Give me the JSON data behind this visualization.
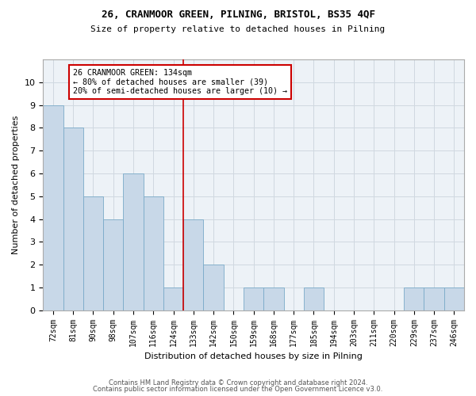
{
  "title1": "26, CRANMOOR GREEN, PILNING, BRISTOL, BS35 4QF",
  "title2": "Size of property relative to detached houses in Pilning",
  "xlabel": "Distribution of detached houses by size in Pilning",
  "ylabel": "Number of detached properties",
  "categories": [
    "72sqm",
    "81sqm",
    "90sqm",
    "98sqm",
    "107sqm",
    "116sqm",
    "124sqm",
    "133sqm",
    "142sqm",
    "150sqm",
    "159sqm",
    "168sqm",
    "177sqm",
    "185sqm",
    "194sqm",
    "203sqm",
    "211sqm",
    "220sqm",
    "229sqm",
    "237sqm",
    "246sqm"
  ],
  "values": [
    9,
    8,
    5,
    4,
    6,
    5,
    1,
    4,
    2,
    0,
    1,
    1,
    0,
    1,
    0,
    0,
    0,
    0,
    1,
    1,
    1
  ],
  "bar_color": "#c8d8e8",
  "bar_edgecolor": "#7aaac8",
  "grid_color": "#d0d8e0",
  "reference_line_index": 7,
  "reference_line_color": "#cc0000",
  "annotation_text": "26 CRANMOOR GREEN: 134sqm\n← 80% of detached houses are smaller (39)\n20% of semi-detached houses are larger (10) →",
  "annotation_box_color": "#cc0000",
  "ylim": [
    0,
    11
  ],
  "yticks": [
    0,
    1,
    2,
    3,
    4,
    5,
    6,
    7,
    8,
    9,
    10
  ],
  "footer1": "Contains HM Land Registry data © Crown copyright and database right 2024.",
  "footer2": "Contains public sector information licensed under the Open Government Licence v3.0.",
  "bg_color": "#edf2f7"
}
